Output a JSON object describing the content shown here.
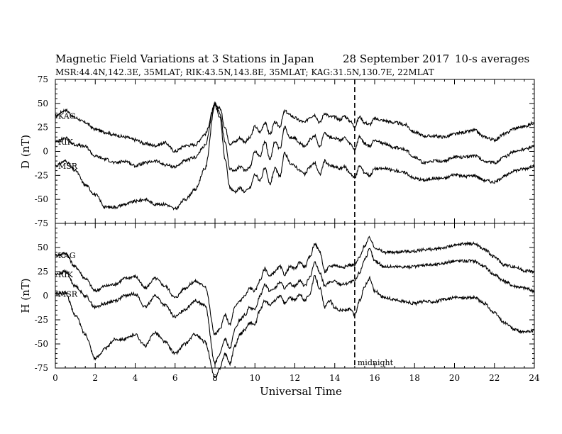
{
  "header": {
    "title": "Magnetic Field Variations at 3 Stations in Japan",
    "date": "28 September 2017",
    "averaging": "10-s averages",
    "stations_line": "MSR:44.4N,142.3E, 35MLAT;  RIK:43.5N,143.8E, 35MLAT;  KAG:31.5N,130.7E, 22MLAT"
  },
  "chart_data": [
    {
      "type": "line",
      "panel": "D",
      "ylabel": "D (nT)",
      "ylim": [
        -75,
        75
      ],
      "yticks": [
        75,
        50,
        25,
        0,
        -25,
        -50,
        -75
      ],
      "xlim": [
        0,
        24
      ],
      "station_labels": [
        "KAG",
        "RIK",
        "MSR"
      ],
      "x": [
        0,
        0.5,
        1,
        1.5,
        2,
        2.5,
        3,
        3.5,
        4,
        4.5,
        5,
        5.5,
        6,
        6.5,
        7,
        7.5,
        8,
        8.25,
        8.5,
        8.75,
        9,
        9.25,
        9.5,
        9.75,
        10,
        10.25,
        10.5,
        10.75,
        11,
        11.25,
        11.5,
        11.75,
        12,
        12.25,
        12.5,
        12.75,
        13,
        13.25,
        13.5,
        13.75,
        14,
        14.25,
        14.5,
        14.75,
        15,
        15.25,
        15.5,
        15.75,
        16,
        16.5,
        17,
        17.5,
        18,
        18.5,
        19,
        19.5,
        20,
        20.5,
        21,
        21.5,
        22,
        22.5,
        23,
        23.5,
        24
      ],
      "series": [
        {
          "name": "KAG",
          "values": [
            37,
            43,
            35,
            30,
            23,
            20,
            17,
            15,
            12,
            8,
            6,
            9,
            0,
            6,
            7,
            18,
            48,
            45,
            25,
            8,
            10,
            14,
            10,
            14,
            26,
            20,
            30,
            18,
            30,
            26,
            42,
            38,
            35,
            32,
            30,
            36,
            38,
            30,
            40,
            36,
            36,
            33,
            37,
            32,
            26,
            36,
            30,
            28,
            34,
            32,
            30,
            28,
            20,
            16,
            16,
            15,
            18,
            20,
            22,
            15,
            12,
            18,
            24,
            26,
            30
          ]
        },
        {
          "name": "RIK",
          "values": [
            10,
            14,
            7,
            5,
            -5,
            -8,
            -12,
            -10,
            -15,
            -12,
            -10,
            -14,
            -16,
            -10,
            -6,
            6,
            50,
            40,
            10,
            -18,
            -20,
            -16,
            -20,
            -16,
            0,
            -5,
            10,
            -8,
            10,
            2,
            25,
            15,
            14,
            8,
            5,
            12,
            16,
            5,
            20,
            15,
            14,
            12,
            14,
            8,
            2,
            15,
            8,
            5,
            12,
            8,
            4,
            2,
            -6,
            -12,
            -10,
            -10,
            -6,
            -6,
            -4,
            -10,
            -12,
            -6,
            0,
            2,
            6
          ]
        },
        {
          "name": "MSR",
          "values": [
            -15,
            -10,
            -20,
            -35,
            -45,
            -58,
            -58,
            -55,
            -52,
            -50,
            -55,
            -55,
            -60,
            -50,
            -40,
            -18,
            48,
            35,
            -8,
            -38,
            -42,
            -38,
            -42,
            -38,
            -24,
            -30,
            -18,
            -34,
            -18,
            -26,
            -2,
            -12,
            -15,
            -20,
            -24,
            -16,
            -12,
            -24,
            -10,
            -15,
            -16,
            -18,
            -16,
            -22,
            -28,
            -15,
            -22,
            -25,
            -18,
            -18,
            -20,
            -22,
            -28,
            -30,
            -28,
            -28,
            -24,
            -26,
            -25,
            -30,
            -32,
            -26,
            -20,
            -18,
            -15
          ]
        }
      ]
    },
    {
      "type": "line",
      "panel": "H",
      "ylabel": "H (nT)",
      "ylim": [
        -75,
        75
      ],
      "yticks": [
        50,
        25,
        0,
        -25,
        -50,
        -75
      ],
      "xlim": [
        0,
        24
      ],
      "xticks": [
        0,
        2,
        4,
        6,
        8,
        10,
        12,
        14,
        16,
        18,
        20,
        22,
        24
      ],
      "xlabel": "Universal Time",
      "station_labels": [
        "KAG",
        "RIK",
        "MSR"
      ],
      "x": [
        0,
        0.5,
        1,
        1.5,
        2,
        2.5,
        3,
        3.5,
        4,
        4.5,
        5,
        5.5,
        6,
        6.5,
        7,
        7.5,
        8,
        8.25,
        8.5,
        8.75,
        9,
        9.25,
        9.5,
        9.75,
        10,
        10.25,
        10.5,
        10.75,
        11,
        11.25,
        11.5,
        11.75,
        12,
        12.25,
        12.5,
        12.75,
        13,
        13.25,
        13.5,
        13.75,
        14,
        14.25,
        14.5,
        14.75,
        15,
        15.25,
        15.5,
        15.75,
        16,
        16.5,
        17,
        17.5,
        18,
        18.5,
        19,
        19.5,
        20,
        20.5,
        21,
        21.5,
        22,
        22.5,
        23,
        23.5,
        24
      ],
      "series": [
        {
          "name": "KAG",
          "values": [
            42,
            44,
            30,
            18,
            5,
            10,
            12,
            18,
            20,
            8,
            18,
            10,
            -2,
            8,
            15,
            10,
            -40,
            -35,
            -20,
            -30,
            -12,
            -5,
            0,
            8,
            5,
            16,
            28,
            20,
            25,
            30,
            22,
            30,
            28,
            35,
            30,
            40,
            54,
            46,
            25,
            30,
            32,
            30,
            30,
            32,
            32,
            40,
            52,
            60,
            50,
            45,
            45,
            46,
            46,
            48,
            48,
            50,
            52,
            54,
            54,
            48,
            40,
            32,
            30,
            26,
            25
          ]
        },
        {
          "name": "RIK",
          "values": [
            22,
            25,
            10,
            0,
            -12,
            -8,
            -5,
            0,
            2,
            -12,
            0,
            -10,
            -22,
            -14,
            -5,
            -10,
            -70,
            -60,
            -45,
            -55,
            -35,
            -25,
            -20,
            -12,
            -15,
            0,
            12,
            5,
            8,
            14,
            8,
            12,
            10,
            16,
            10,
            20,
            34,
            24,
            10,
            14,
            15,
            12,
            12,
            14,
            15,
            24,
            38,
            48,
            36,
            30,
            30,
            30,
            30,
            32,
            32,
            34,
            36,
            36,
            36,
            30,
            22,
            15,
            10,
            8,
            5
          ]
        },
        {
          "name": "MSR",
          "values": [
            2,
            3,
            -20,
            -40,
            -65,
            -55,
            -45,
            -45,
            -40,
            -52,
            -38,
            -48,
            -60,
            -50,
            -40,
            -48,
            -85,
            -75,
            -60,
            -70,
            -52,
            -40,
            -35,
            -28,
            -30,
            -15,
            -5,
            -10,
            -5,
            0,
            -8,
            -2,
            -5,
            2,
            -5,
            2,
            20,
            8,
            -12,
            -5,
            -12,
            -15,
            -15,
            -14,
            -20,
            -5,
            10,
            18,
            5,
            -2,
            -4,
            -6,
            -8,
            -6,
            -6,
            -4,
            -2,
            -2,
            -2,
            -8,
            -18,
            -28,
            -35,
            -38,
            -36
          ]
        }
      ]
    }
  ],
  "annotations": {
    "midnight_label": "midnight",
    "midnight_ut": 15
  }
}
